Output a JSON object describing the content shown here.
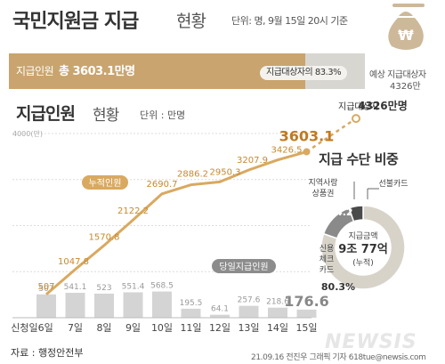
{
  "header": {
    "title": "국민지원금 지급",
    "title_light": "현황",
    "unit_note": "단위: 명, 9월 15일 20시 기준"
  },
  "progress": {
    "recipients_label": "지급인원",
    "recipients_total": "총 3603.1만명",
    "ratio_text": "지급대상자의 83.3%",
    "ratio_value": 0.833,
    "target_label": "예상 지급대상자",
    "target_value": "4326만"
  },
  "chart_header": {
    "title": "지급인원",
    "title_light": "현황",
    "unit": "단위 : 만명"
  },
  "ring_header": {
    "title": "지급 수단 비중"
  },
  "footer": {
    "source": "자료 : 행정안전부",
    "credit": "21.09.16 전진우 그래픽 기자 618tue@newsis.com",
    "watermark": "NEWSIS"
  },
  "icons": [
    "money-bag-icon"
  ],
  "colors": {
    "gold": "#c9a46e",
    "line": "#d9a960",
    "bar": "#d4d4d4",
    "ring_gray": "#8a8a8a",
    "ring_dark": "#4a4a4a",
    "ring_light": "#d8d3c9"
  },
  "chart_data": [
    {
      "type": "line+bar",
      "categories": [
        "신청일6일",
        "7일",
        "8일",
        "9일",
        "10일",
        "11일",
        "12일",
        "13일",
        "14일",
        "15일"
      ],
      "ylim": [
        0,
        4000
      ],
      "y_max_label": "4000(만)",
      "series": [
        {
          "name": "누적인원",
          "type": "line",
          "values": [
            507,
            1047.8,
            1570.8,
            2122.2,
            2690.7,
            2886.2,
            2950.3,
            3207.9,
            3426.5,
            3603.1
          ],
          "labels": [
            "507",
            "1047.8",
            "1570.8",
            "2122.2",
            "2690.7",
            "2886.2",
            "2950.3",
            "3207.9",
            "3426.5",
            "3603.1"
          ]
        },
        {
          "name": "당일지급인원",
          "type": "bar",
          "values": [
            507,
            541.1,
            523,
            551.4,
            568.5,
            195.5,
            64.1,
            257.6,
            218.6,
            176.6
          ],
          "labels": [
            "507",
            "541.1",
            "523",
            "551.4",
            "568.5",
            "195.5",
            "64.1",
            "257.6",
            "218.6",
            "176.6"
          ]
        }
      ],
      "target": {
        "label": "지급대상자",
        "value_label": "4326만명",
        "value": 4326
      }
    },
    {
      "type": "pie",
      "title": "지급 수단 비중",
      "center_label": "지급금액",
      "center_value": "9조 77억",
      "center_note": "(누적)",
      "slices": [
        {
          "name": "신용 체크 카드",
          "value": 80.3,
          "label": "80.3%"
        },
        {
          "name": "지역사랑 상품권",
          "value": 14.2,
          "label": "14.2"
        },
        {
          "name": "선불카드",
          "value": 5.5,
          "label": "5.5"
        }
      ]
    }
  ]
}
